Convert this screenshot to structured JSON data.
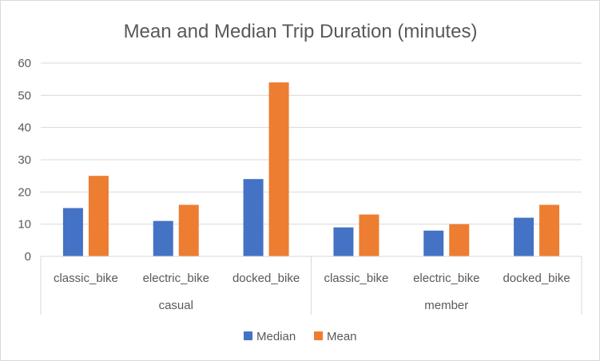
{
  "chart_data": {
    "type": "bar",
    "title": "Mean and Median Trip Duration (minutes)",
    "groups": [
      {
        "label": "casual",
        "categories": [
          "classic_bike",
          "electric_bike",
          "docked_bike"
        ]
      },
      {
        "label": "member",
        "categories": [
          "classic_bike",
          "electric_bike",
          "docked_bike"
        ]
      }
    ],
    "series": [
      {
        "name": "Median",
        "color": "#4472c4",
        "values": [
          15,
          11,
          24,
          9,
          8,
          12
        ]
      },
      {
        "name": "Mean",
        "color": "#ed7d31",
        "values": [
          25,
          16,
          54,
          13,
          10,
          16
        ]
      }
    ],
    "ylim": [
      0,
      60
    ],
    "yticks": [
      "0",
      "10",
      "20",
      "30",
      "40",
      "50",
      "60"
    ],
    "grid": true,
    "legend": "bottom"
  }
}
